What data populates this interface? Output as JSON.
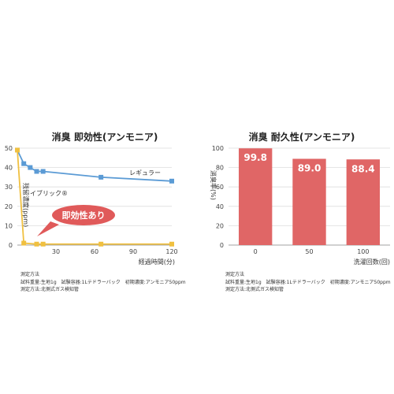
{
  "chart_data": [
    {
      "type": "line",
      "title": "消臭 即効性(アンモニア)",
      "xlabel": "経過時間(分)",
      "ylabel": "残留濃度(ppm)",
      "xlim": [
        0,
        120
      ],
      "ylim": [
        0,
        50
      ],
      "x_ticks": [
        "30",
        "60",
        "90",
        "120"
      ],
      "y_ticks": [
        "0",
        "10",
        "20",
        "30",
        "40",
        "50"
      ],
      "grid": "horizontal",
      "series": [
        {
          "name": "レギュラー",
          "color": "#5b9bd5",
          "points": [
            [
              0,
              49
            ],
            [
              5,
              42
            ],
            [
              10,
              40
            ],
            [
              15,
              38
            ],
            [
              20,
              38
            ],
            [
              65,
              35
            ],
            [
              120,
              33
            ]
          ]
        },
        {
          "name": "イブリック®",
          "color": "#f0c040",
          "points": [
            [
              0,
              49
            ],
            [
              5,
              1
            ],
            [
              15,
              0.5
            ],
            [
              20,
              0.5
            ],
            [
              65,
              0.5
            ],
            [
              120,
              0.5
            ]
          ]
        }
      ],
      "callout": "即効性あり",
      "callout_color": "#e05a5a",
      "notes": [
        "測定方法",
        "試料重量:生地1g　試験容器:1Lテドラーバック　初期濃度:アンモニア50ppm",
        "測定方法:北側式ガス検知管"
      ]
    },
    {
      "type": "bar",
      "title": "消臭 耐久性(アンモニア)",
      "xlabel": "洗濯回数(回)",
      "ylabel": "消臭率(%)",
      "ylim": [
        0,
        100
      ],
      "y_ticks": [
        "0",
        "20",
        "40",
        "60",
        "80",
        "100"
      ],
      "grid": "horizontal",
      "bar_color": "#e06666",
      "categories": [
        "0",
        "50",
        "100"
      ],
      "values": [
        99.8,
        89.0,
        88.4
      ],
      "value_labels": [
        "99.8",
        "89.0",
        "88.4"
      ],
      "notes": [
        "測定方法",
        "試料重量:生地1g　試験容器:1Lテドラーバック　初期濃度:アンモニア50ppm",
        "測定方法:北側式ガス検知管"
      ]
    }
  ]
}
